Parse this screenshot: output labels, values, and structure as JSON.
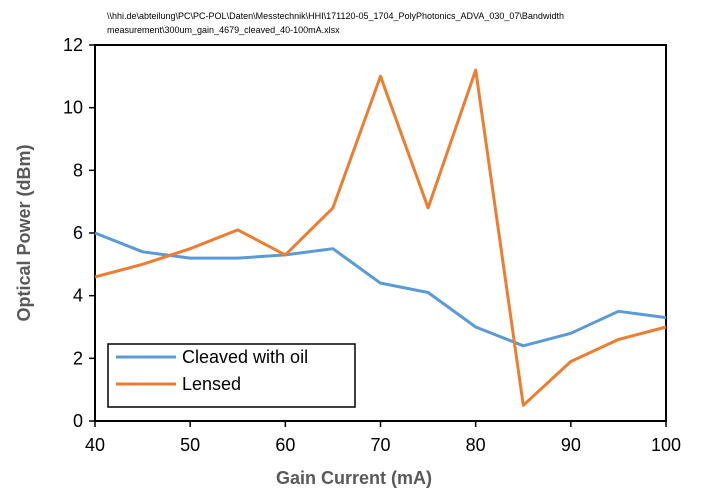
{
  "chart_data": {
    "type": "line",
    "title_lines": [
      "\\\\hhi.de\\abteilung\\PC\\PC-POL\\Daten\\Messtechnik\\HHI\\171120-05_1704_PolyPhotonics_ADVA_030_07\\Bandwidth",
      "measurement\\300um_gain_4679_cleaved_40-100mA.xlsx"
    ],
    "xlabel": "Gain Current (mA)",
    "ylabel": "Optical Power (dBm)",
    "xlim": [
      40,
      100
    ],
    "ylim": [
      0,
      12
    ],
    "xticks": [
      40,
      50,
      60,
      70,
      80,
      90,
      100
    ],
    "yticks": [
      0,
      2,
      4,
      6,
      8,
      10,
      12
    ],
    "grid": false,
    "legend_position": "bottom-left",
    "x": [
      40,
      45,
      50,
      55,
      60,
      65,
      70,
      75,
      80,
      85,
      90,
      95,
      100
    ],
    "series": [
      {
        "name": "Cleaved with oil",
        "color": "#5B9BD5",
        "values": [
          6.0,
          5.4,
          5.2,
          5.2,
          5.3,
          5.5,
          4.4,
          4.1,
          3.0,
          2.4,
          2.8,
          3.5,
          3.3
        ]
      },
      {
        "name": "Lensed",
        "color": "#ED7D31",
        "values": [
          4.6,
          5.0,
          5.5,
          6.1,
          5.3,
          6.8,
          11.0,
          6.8,
          11.2,
          0.5,
          1.9,
          2.6,
          3.0
        ]
      }
    ]
  }
}
